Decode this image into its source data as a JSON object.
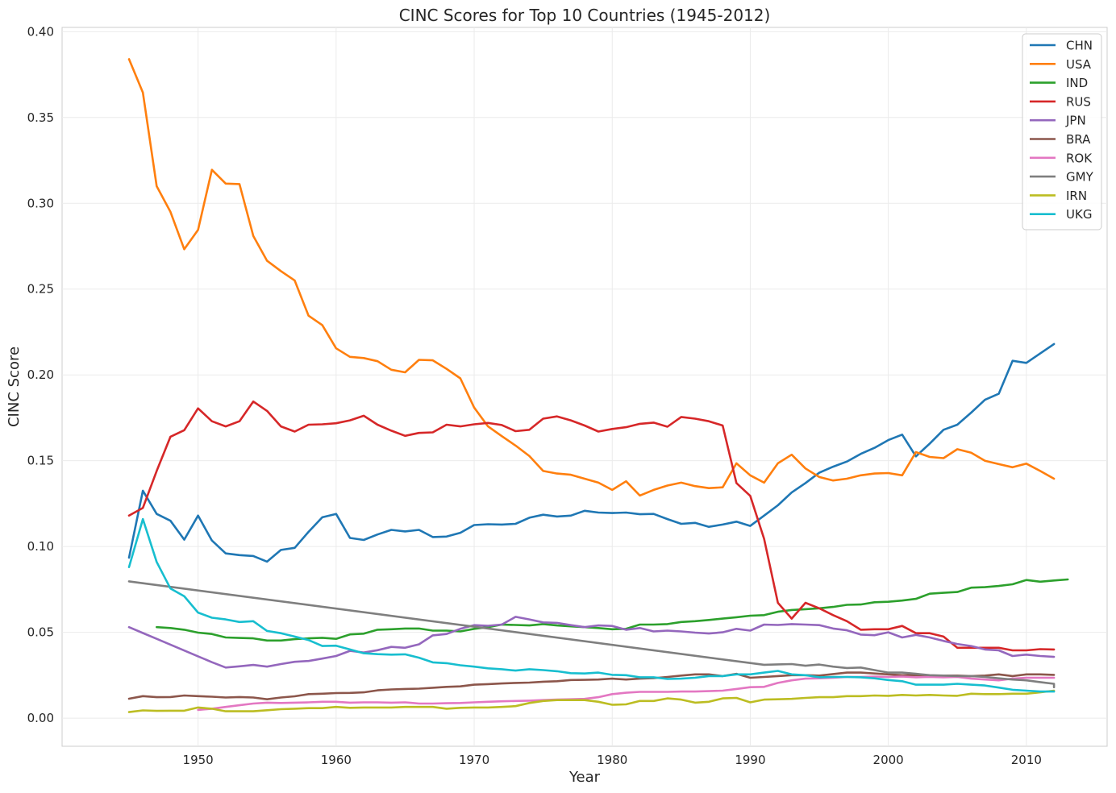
{
  "chart_data": {
    "type": "line",
    "title": "CINC Scores for Top 10 Countries (1945-2012)",
    "xlabel": "Year",
    "ylabel": "CINC Score",
    "xlim": [
      1940.15,
      2015.85
    ],
    "ylim": [
      -0.0164,
      0.4025
    ],
    "xticks": [
      1950,
      1960,
      1970,
      1980,
      1990,
      2000,
      2010
    ],
    "yticks": [
      0.0,
      0.05,
      0.1,
      0.15,
      0.2,
      0.25,
      0.3,
      0.35,
      0.4
    ],
    "ytick_labels": [
      "0.00",
      "0.05",
      "0.10",
      "0.15",
      "0.20",
      "0.25",
      "0.30",
      "0.35",
      "0.40"
    ],
    "grid": true,
    "legend_position": "top-right",
    "series": [
      {
        "name": "CHN",
        "color": "#1f77b4",
        "start": 1945,
        "values": [
          0.0935,
          0.1325,
          0.119,
          0.115,
          0.104,
          0.118,
          0.1035,
          0.096,
          0.095,
          0.0945,
          0.0912,
          0.098,
          0.0992,
          0.1085,
          0.117,
          0.119,
          0.105,
          0.1038,
          0.107,
          0.1097,
          0.1088,
          0.1097,
          0.1055,
          0.1058,
          0.108,
          0.1125,
          0.113,
          0.1128,
          0.1132,
          0.1168,
          0.1185,
          0.1175,
          0.118,
          0.1208,
          0.1198,
          0.1195,
          0.1198,
          0.1188,
          0.119,
          0.116,
          0.1132,
          0.1138,
          0.1115,
          0.1128,
          0.1145,
          0.112,
          0.118,
          0.124,
          0.1315,
          0.137,
          0.143,
          0.1465,
          0.1495,
          0.154,
          0.1575,
          0.162,
          0.1652,
          0.1525,
          0.16,
          0.168,
          0.171,
          0.178,
          0.1855,
          0.189,
          0.2082,
          0.207,
          0.2125,
          0.218
        ]
      },
      {
        "name": "USA",
        "color": "#ff7f0e",
        "start": 1945,
        "values": [
          0.384,
          0.3645,
          0.31,
          0.295,
          0.2732,
          0.2845,
          0.3195,
          0.3115,
          0.3112,
          0.281,
          0.2665,
          0.2605,
          0.255,
          0.2345,
          0.229,
          0.2155,
          0.2105,
          0.2098,
          0.208,
          0.203,
          0.2015,
          0.2088,
          0.2085,
          0.2035,
          0.198,
          0.181,
          0.17,
          0.1643,
          0.1588,
          0.1527,
          0.144,
          0.1425,
          0.1418,
          0.1395,
          0.1372,
          0.133,
          0.138,
          0.1297,
          0.133,
          0.1355,
          0.1372,
          0.1352,
          0.134,
          0.1345,
          0.1485,
          0.1415,
          0.1372,
          0.1485,
          0.1535,
          0.1455,
          0.1405,
          0.1385,
          0.1395,
          0.1415,
          0.1425,
          0.1428,
          0.1415,
          0.155,
          0.1522,
          0.1515,
          0.1567,
          0.1547,
          0.15,
          0.148,
          0.1462,
          0.1483,
          0.144,
          0.1395
        ]
      },
      {
        "name": "IND",
        "color": "#2ca02c",
        "start": 1947,
        "values": [
          0.053,
          0.0525,
          0.0515,
          0.0498,
          0.049,
          0.047,
          0.0467,
          0.0465,
          0.0452,
          0.0452,
          0.046,
          0.0465,
          0.0468,
          0.0462,
          0.0488,
          0.0492,
          0.0515,
          0.0518,
          0.0522,
          0.0522,
          0.051,
          0.051,
          0.0505,
          0.052,
          0.053,
          0.0545,
          0.0543,
          0.054,
          0.0548,
          0.054,
          0.0535,
          0.053,
          0.0525,
          0.0518,
          0.052,
          0.0545,
          0.0545,
          0.0548,
          0.056,
          0.0565,
          0.0572,
          0.058,
          0.0588,
          0.0597,
          0.06,
          0.062,
          0.063,
          0.0635,
          0.064,
          0.0648,
          0.066,
          0.0662,
          0.0675,
          0.0678,
          0.0685,
          0.0695,
          0.0725,
          0.073,
          0.0735,
          0.076,
          0.0763,
          0.077,
          0.078,
          0.0805,
          0.0795,
          0.0802,
          0.0808
        ]
      },
      {
        "name": "RUS",
        "color": "#d62728",
        "start": 1945,
        "values": [
          0.118,
          0.1225,
          0.144,
          0.164,
          0.1678,
          0.1805,
          0.173,
          0.17,
          0.173,
          0.1845,
          0.179,
          0.17,
          0.167,
          0.171,
          0.1712,
          0.1718,
          0.1735,
          0.1762,
          0.171,
          0.1675,
          0.1645,
          0.1662,
          0.1665,
          0.171,
          0.17,
          0.1712,
          0.172,
          0.1708,
          0.1672,
          0.168,
          0.1745,
          0.1758,
          0.1735,
          0.1705,
          0.167,
          0.1685,
          0.1695,
          0.1715,
          0.1722,
          0.1698,
          0.1755,
          0.1745,
          0.173,
          0.1705,
          0.137,
          0.1295,
          0.1045,
          0.0672,
          0.058,
          0.0672,
          0.064,
          0.06,
          0.0565,
          0.0515,
          0.0518,
          0.0518,
          0.0537,
          0.0495,
          0.0495,
          0.0475,
          0.041,
          0.041,
          0.041,
          0.041,
          0.0395,
          0.0395,
          0.0402,
          0.04
        ]
      },
      {
        "name": "JPN",
        "color": "#9467bd",
        "start": 1945,
        "values": [
          0.053,
          0.0496,
          0.0462,
          0.0428,
          0.0394,
          0.036,
          0.0326,
          0.0295,
          0.0302,
          0.031,
          0.03,
          0.0315,
          0.0328,
          0.0333,
          0.0347,
          0.0362,
          0.0392,
          0.0382,
          0.0396,
          0.0415,
          0.041,
          0.043,
          0.0482,
          0.049,
          0.052,
          0.0542,
          0.0538,
          0.0545,
          0.059,
          0.0575,
          0.0558,
          0.0555,
          0.0542,
          0.053,
          0.054,
          0.0537,
          0.0515,
          0.0525,
          0.0505,
          0.051,
          0.0505,
          0.0498,
          0.0493,
          0.05,
          0.052,
          0.051,
          0.0545,
          0.0543,
          0.0548,
          0.0545,
          0.0542,
          0.0522,
          0.0512,
          0.0487,
          0.0483,
          0.05,
          0.047,
          0.0485,
          0.047,
          0.045,
          0.0432,
          0.042,
          0.04,
          0.0395,
          0.0362,
          0.037,
          0.0362,
          0.0357
        ]
      },
      {
        "name": "BRA",
        "color": "#8c564b",
        "start": 1945,
        "values": [
          0.0113,
          0.0128,
          0.0122,
          0.0123,
          0.0132,
          0.0128,
          0.0125,
          0.012,
          0.0123,
          0.012,
          0.011,
          0.012,
          0.0127,
          0.014,
          0.0142,
          0.0146,
          0.0147,
          0.015,
          0.0162,
          0.0167,
          0.017,
          0.0172,
          0.0177,
          0.0182,
          0.0185,
          0.0195,
          0.0198,
          0.0202,
          0.0205,
          0.0207,
          0.0212,
          0.0215,
          0.0222,
          0.0223,
          0.0225,
          0.023,
          0.0225,
          0.023,
          0.0233,
          0.024,
          0.0248,
          0.0255,
          0.0255,
          0.0245,
          0.0258,
          0.0235,
          0.024,
          0.0245,
          0.025,
          0.025,
          0.0248,
          0.0257,
          0.0265,
          0.0265,
          0.026,
          0.0255,
          0.025,
          0.025,
          0.0248,
          0.0248,
          0.0248,
          0.0245,
          0.0248,
          0.0255,
          0.0245,
          0.0255,
          0.0255,
          0.0252
        ]
      },
      {
        "name": "ROK",
        "color": "#e377c2",
        "start": 1950,
        "values": [
          0.0048,
          0.0055,
          0.0065,
          0.0075,
          0.0085,
          0.009,
          0.0088,
          0.009,
          0.0092,
          0.0095,
          0.0095,
          0.009,
          0.0092,
          0.0092,
          0.009,
          0.0092,
          0.0085,
          0.0085,
          0.0087,
          0.0088,
          0.0092,
          0.0095,
          0.0098,
          0.01,
          0.0102,
          0.0105,
          0.0108,
          0.011,
          0.0112,
          0.0122,
          0.014,
          0.0148,
          0.0153,
          0.0153,
          0.0153,
          0.0155,
          0.0155,
          0.0157,
          0.016,
          0.017,
          0.018,
          0.0182,
          0.0205,
          0.022,
          0.023,
          0.0232,
          0.0235,
          0.024,
          0.024,
          0.0242,
          0.024,
          0.0242,
          0.0238,
          0.024,
          0.0238,
          0.024,
          0.023,
          0.0225,
          0.022,
          0.023,
          0.0235,
          0.0235,
          0.0235
        ]
      },
      {
        "name": "GMY",
        "color": "#7f7f7f",
        "start": 1945,
        "values": [
          0.0797,
          0.0321,
          0.0311,
          0.0313,
          0.0315,
          0.0305,
          0.0312,
          0.03,
          0.0292,
          0.0295,
          0.028,
          0.0265,
          0.0265,
          0.0258,
          0.025,
          0.0248,
          0.0245,
          0.0245,
          0.024,
          0.0232,
          0.0225,
          0.022,
          0.021,
          0.02,
          0.0198,
          0.0188,
          0.018
        ],
        "x": [
          1945,
          1990,
          1991,
          1992,
          1993,
          1994,
          1995,
          1996,
          1997,
          1998,
          1999,
          2000,
          2001,
          2002,
          2003,
          2004,
          2005,
          2006,
          2007,
          2008,
          2009,
          2010,
          2011,
          2012,
          2012,
          2012,
          2012
        ]
      },
      {
        "name": "IRN",
        "color": "#bcbd22",
        "start": 1945,
        "values": [
          0.0035,
          0.0045,
          0.0042,
          0.0043,
          0.0043,
          0.0062,
          0.0055,
          0.004,
          0.004,
          0.004,
          0.0046,
          0.0052,
          0.0055,
          0.0058,
          0.0058,
          0.0065,
          0.006,
          0.0062,
          0.0062,
          0.0062,
          0.0065,
          0.0065,
          0.0065,
          0.0055,
          0.006,
          0.0062,
          0.0062,
          0.0065,
          0.007,
          0.0088,
          0.01,
          0.0105,
          0.0105,
          0.0105,
          0.0095,
          0.0078,
          0.008,
          0.01,
          0.01,
          0.0115,
          0.0108,
          0.009,
          0.0095,
          0.0115,
          0.0118,
          0.0092,
          0.0108,
          0.011,
          0.0112,
          0.0118,
          0.0122,
          0.0122,
          0.0128,
          0.0128,
          0.0132,
          0.013,
          0.0135,
          0.0132,
          0.0135,
          0.0132,
          0.013,
          0.0142,
          0.014,
          0.014,
          0.0142,
          0.0142,
          0.015,
          0.016
        ]
      },
      {
        "name": "UKG",
        "color": "#17becf",
        "start": 1945,
        "values": [
          0.088,
          0.116,
          0.091,
          0.0755,
          0.071,
          0.0615,
          0.0585,
          0.0575,
          0.056,
          0.0565,
          0.0508,
          0.0495,
          0.0475,
          0.0455,
          0.042,
          0.0422,
          0.04,
          0.0378,
          0.0373,
          0.037,
          0.0372,
          0.0352,
          0.0325,
          0.032,
          0.0308,
          0.03,
          0.029,
          0.0285,
          0.0277,
          0.0285,
          0.028,
          0.0273,
          0.0262,
          0.026,
          0.0265,
          0.0252,
          0.025,
          0.0238,
          0.0238,
          0.0228,
          0.023,
          0.0235,
          0.0245,
          0.0245,
          0.0255,
          0.0255,
          0.0265,
          0.0275,
          0.0255,
          0.025,
          0.0238,
          0.024,
          0.024,
          0.0238,
          0.0232,
          0.0222,
          0.0215,
          0.0195,
          0.0195,
          0.0195,
          0.02,
          0.0195,
          0.019,
          0.0178,
          0.0165,
          0.016,
          0.0155,
          0.0155
        ]
      }
    ]
  }
}
